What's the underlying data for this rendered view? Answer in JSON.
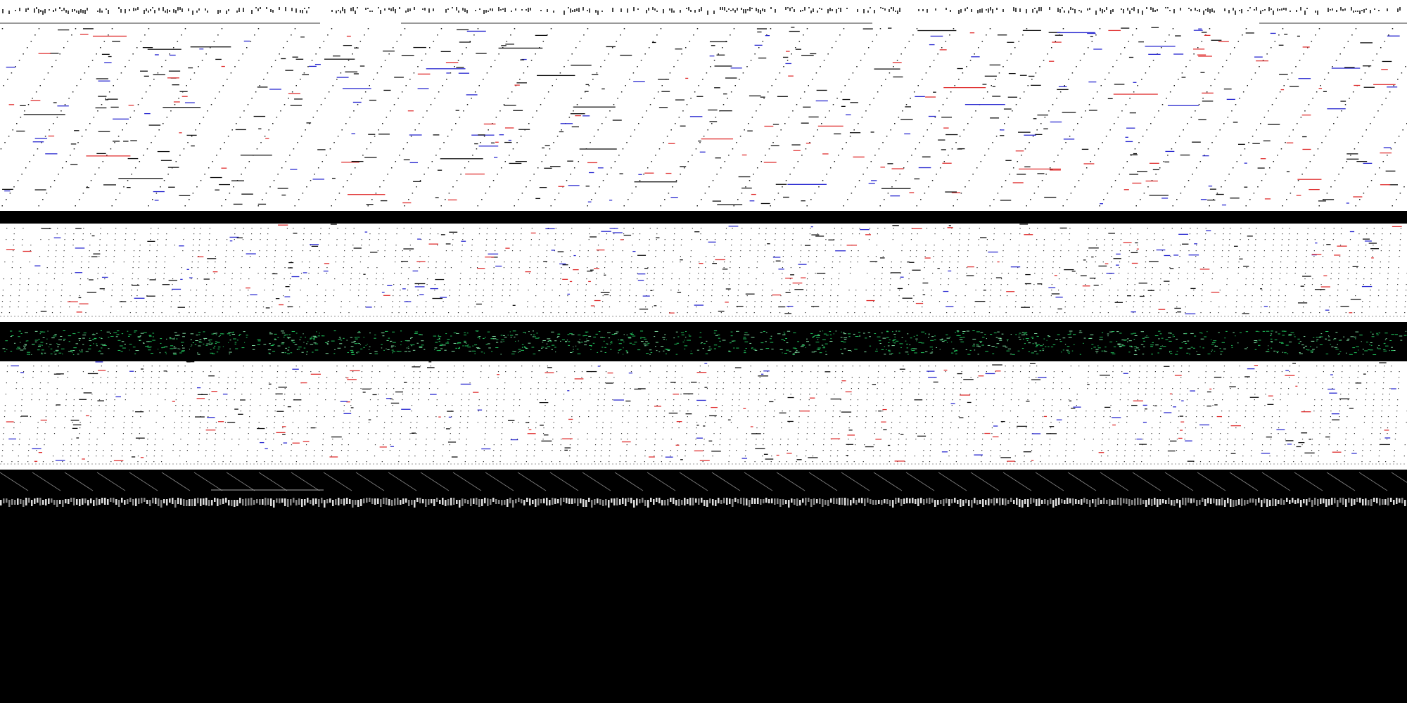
{
  "colors": {
    "background": "#ffffff",
    "ink": "#111111",
    "red": "#e03030",
    "blue": "#2a2ad0",
    "green": "#1fbf5a",
    "black": "#000000"
  },
  "bands": [
    {
      "name": "top-noise-text"
    },
    {
      "name": "diagonal-dot-field"
    },
    {
      "name": "black-separator"
    },
    {
      "name": "vertical-dot-columns"
    },
    {
      "name": "green-noise-strip"
    },
    {
      "name": "vertical-dot-columns-lower"
    },
    {
      "name": "diagonal-hatch-strip"
    },
    {
      "name": "white-glyph-noise-strip"
    },
    {
      "name": "black-empty-area"
    }
  ]
}
